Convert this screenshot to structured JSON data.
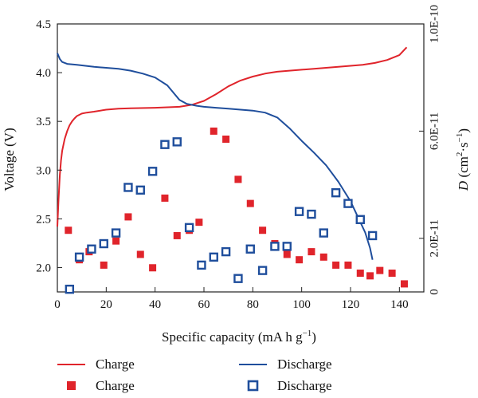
{
  "chart_data": {
    "type": "line",
    "xlabel_parts": {
      "main": "Specific capacity (mA h g",
      "sup": "−1",
      "end": ")"
    },
    "ylabel_left": "Voltage (V)",
    "ylabel_right_parts": {
      "var": "D",
      "unit": " (cm",
      "sup1": "2",
      "mid": "·s",
      "sup2": "−1",
      "end": ")"
    },
    "xlim": [
      0,
      150
    ],
    "ylim_left": [
      1.75,
      4.5
    ],
    "ylim_right": [
      0,
      1e-10
    ],
    "x_ticks": [
      {
        "v": 0,
        "label": "0"
      },
      {
        "v": 20,
        "label": "20"
      },
      {
        "v": 40,
        "label": "40"
      },
      {
        "v": 60,
        "label": "60"
      },
      {
        "v": 80,
        "label": "80"
      },
      {
        "v": 100,
        "label": "100"
      },
      {
        "v": 120,
        "label": "120"
      },
      {
        "v": 140,
        "label": "140"
      }
    ],
    "y_left_ticks": [
      {
        "v": 2.0,
        "label": "2.0"
      },
      {
        "v": 2.5,
        "label": "2.5"
      },
      {
        "v": 3.0,
        "label": "3.0"
      },
      {
        "v": 3.5,
        "label": "3.5"
      },
      {
        "v": 4.0,
        "label": "4.0"
      },
      {
        "v": 4.5,
        "label": "4.5"
      }
    ],
    "y_right_ticks": [
      {
        "v": 0,
        "label": "0"
      },
      {
        "v": 2e-11,
        "label": "2.0E-11"
      },
      {
        "v": 6e-11,
        "label": "6.0E-11"
      },
      {
        "v": 1e-10,
        "label": "1.0E-10"
      }
    ],
    "series": [
      {
        "name": "Charge",
        "kind": "line",
        "axis": "left",
        "color": "#e0242b",
        "points": [
          [
            0,
            2.42
          ],
          [
            0.5,
            2.7
          ],
          [
            1,
            2.95
          ],
          [
            1.5,
            3.1
          ],
          [
            2,
            3.2
          ],
          [
            3,
            3.32
          ],
          [
            4,
            3.4
          ],
          [
            5,
            3.46
          ],
          [
            6,
            3.5
          ],
          [
            7,
            3.53
          ],
          [
            8,
            3.555
          ],
          [
            10,
            3.58
          ],
          [
            12,
            3.59
          ],
          [
            15,
            3.6
          ],
          [
            20,
            3.62
          ],
          [
            25,
            3.63
          ],
          [
            30,
            3.635
          ],
          [
            40,
            3.64
          ],
          [
            50,
            3.65
          ],
          [
            55,
            3.67
          ],
          [
            60,
            3.71
          ],
          [
            65,
            3.78
          ],
          [
            70,
            3.86
          ],
          [
            75,
            3.92
          ],
          [
            80,
            3.96
          ],
          [
            85,
            3.99
          ],
          [
            90,
            4.01
          ],
          [
            95,
            4.02
          ],
          [
            100,
            4.03
          ],
          [
            105,
            4.04
          ],
          [
            110,
            4.05
          ],
          [
            115,
            4.06
          ],
          [
            120,
            4.07
          ],
          [
            125,
            4.08
          ],
          [
            130,
            4.1
          ],
          [
            135,
            4.13
          ],
          [
            140,
            4.18
          ],
          [
            143,
            4.26
          ]
        ]
      },
      {
        "name": "Discharge",
        "kind": "line",
        "axis": "left",
        "color": "#1f4e9c",
        "points": [
          [
            0,
            4.2
          ],
          [
            1,
            4.14
          ],
          [
            2,
            4.11
          ],
          [
            4,
            4.09
          ],
          [
            8,
            4.08
          ],
          [
            15,
            4.06
          ],
          [
            20,
            4.05
          ],
          [
            25,
            4.04
          ],
          [
            30,
            4.02
          ],
          [
            35,
            3.99
          ],
          [
            40,
            3.95
          ],
          [
            45,
            3.87
          ],
          [
            48,
            3.78
          ],
          [
            50,
            3.72
          ],
          [
            53,
            3.68
          ],
          [
            57,
            3.66
          ],
          [
            60,
            3.65
          ],
          [
            65,
            3.64
          ],
          [
            70,
            3.63
          ],
          [
            75,
            3.62
          ],
          [
            80,
            3.61
          ],
          [
            85,
            3.59
          ],
          [
            90,
            3.54
          ],
          [
            95,
            3.43
          ],
          [
            100,
            3.3
          ],
          [
            105,
            3.18
          ],
          [
            110,
            3.05
          ],
          [
            115,
            2.88
          ],
          [
            120,
            2.68
          ],
          [
            123,
            2.52
          ],
          [
            126,
            2.36
          ],
          [
            128,
            2.2
          ],
          [
            129,
            2.08
          ]
        ]
      },
      {
        "name": "Charge",
        "kind": "markers",
        "axis": "right",
        "color": "#e0242b",
        "points": [
          [
            4.5,
            2.3e-11
          ],
          [
            9,
            1.2e-11
          ],
          [
            13,
            1.5e-11
          ],
          [
            19,
            1e-11
          ],
          [
            24,
            1.9e-11
          ],
          [
            29,
            2.8e-11
          ],
          [
            34,
            1.4e-11
          ],
          [
            39,
            9e-12
          ],
          [
            44,
            3.5e-11
          ],
          [
            49,
            2.1e-11
          ],
          [
            54,
            2.3e-11
          ],
          [
            58,
            2.6e-11
          ],
          [
            64,
            6e-11
          ],
          [
            69,
            5.7e-11
          ],
          [
            74,
            4.2e-11
          ],
          [
            79,
            3.3e-11
          ],
          [
            84,
            2.3e-11
          ],
          [
            89,
            1.8e-11
          ],
          [
            94,
            1.4e-11
          ],
          [
            99,
            1.2e-11
          ],
          [
            104,
            1.5e-11
          ],
          [
            109,
            1.3e-11
          ],
          [
            114,
            1e-11
          ],
          [
            119,
            1e-11
          ],
          [
            124,
            7e-12
          ],
          [
            128,
            6e-12
          ],
          [
            132,
            8e-12
          ],
          [
            137,
            7e-12
          ],
          [
            142,
            3e-12
          ]
        ]
      },
      {
        "name": "Discharge",
        "kind": "markers",
        "axis": "right",
        "color": "#1f4e9c",
        "points": [
          [
            5,
            1e-12
          ],
          [
            9,
            1.3e-11
          ],
          [
            14,
            1.6e-11
          ],
          [
            19,
            1.8e-11
          ],
          [
            24,
            2.2e-11
          ],
          [
            29,
            3.9e-11
          ],
          [
            34,
            3.8e-11
          ],
          [
            39,
            4.5e-11
          ],
          [
            44,
            5.5e-11
          ],
          [
            49,
            5.6e-11
          ],
          [
            54,
            2.4e-11
          ],
          [
            59,
            1e-11
          ],
          [
            64,
            1.3e-11
          ],
          [
            69,
            1.5e-11
          ],
          [
            74,
            5e-12
          ],
          [
            79,
            1.6e-11
          ],
          [
            84,
            8e-12
          ],
          [
            89,
            1.7e-11
          ],
          [
            94,
            1.7e-11
          ],
          [
            99,
            3e-11
          ],
          [
            104,
            2.9e-11
          ],
          [
            109,
            2.2e-11
          ],
          [
            114,
            3.7e-11
          ],
          [
            119,
            3.3e-11
          ],
          [
            124,
            2.7e-11
          ],
          [
            129,
            2.1e-11
          ]
        ]
      }
    ],
    "legend": {
      "placement": "bottom",
      "entries": [
        {
          "label": "Charge",
          "symbol": "line",
          "color": "#e0242b"
        },
        {
          "label": "Discharge",
          "symbol": "line",
          "color": "#1f4e9c"
        },
        {
          "label": "Charge",
          "symbol": "filled-square",
          "color": "#e0242b"
        },
        {
          "label": "Discharge",
          "symbol": "hollow-square",
          "color": "#1f4e9c"
        }
      ]
    },
    "grid": false
  }
}
